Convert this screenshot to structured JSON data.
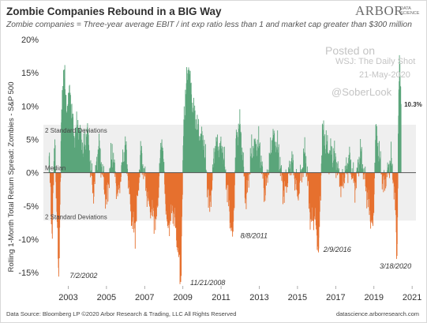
{
  "header": {
    "title": "Zombie Companies Rebound in a BIG Way",
    "subtitle": "Zombie companies = Three-year average EBIT / int exp ratio less than 1 and market cap greater than $300 million",
    "logo_main": "ARBOR",
    "logo_sub": "DATA SCIENCE"
  },
  "watermark": {
    "posted": "Posted on",
    "source": "WSJ: The Daily Shot",
    "date": "21-May-2020",
    "handle": "@SoberLook"
  },
  "footer": {
    "left": "Data Source: Bloomberg LP  ©2020 Arbor Research & Trading, LLC  All Rights Reserved",
    "right": "datascience.arborresearch.com"
  },
  "colors": {
    "positive": "#5aa57a",
    "negative": "#e6702e",
    "band": "#efefef",
    "median_line": "#555555"
  },
  "chart_data": {
    "type": "area",
    "title": "",
    "ylabel": "Rolling 1-Month Total Return Spread: Zombies - S&P 500",
    "xlabel": "",
    "xlim": [
      2001.7,
      2021.2
    ],
    "ylim": [
      -17,
      20
    ],
    "x_ticks": [
      2003,
      2005,
      2007,
      2009,
      2011,
      2013,
      2015,
      2017,
      2019,
      2021
    ],
    "y_ticks": [
      20,
      15,
      10,
      5,
      0,
      -5,
      -10,
      -15
    ],
    "y_tick_labels": [
      "20%",
      "15%",
      "10%",
      "5%",
      "0%",
      "-5%",
      "-10%",
      "-15%"
    ],
    "grid": false,
    "bands": {
      "upper_label": "2 Standard Deviations",
      "lower_label": "2 Standard Deviations",
      "median_label": "Median",
      "upper": 7.2,
      "lower": -7.2
    },
    "last_value": 10.3,
    "last_value_label": "10.3%",
    "annotations": [
      {
        "label": "7/2/2002",
        "x": 2002.5,
        "y": -15.6
      },
      {
        "label": "11/21/2008",
        "x": 2008.89,
        "y": -16.4
      },
      {
        "label": "8/8/2011",
        "x": 2011.6,
        "y": -9.6
      },
      {
        "label": "2/9/2016",
        "x": 2016.11,
        "y": -11.4
      },
      {
        "label": "3/18/2020",
        "x": 2020.21,
        "y": -12.5
      }
    ],
    "anchors": [
      [
        2002.0,
        2.5
      ],
      [
        2002.15,
        -9
      ],
      [
        2002.3,
        5
      ],
      [
        2002.5,
        -15.6
      ],
      [
        2002.65,
        8
      ],
      [
        2002.72,
        13
      ],
      [
        2002.78,
        15.5
      ],
      [
        2002.9,
        9
      ],
      [
        2003.1,
        12
      ],
      [
        2003.3,
        5
      ],
      [
        2003.5,
        7
      ],
      [
        2003.8,
        3
      ],
      [
        2004.0,
        6
      ],
      [
        2004.3,
        -3
      ],
      [
        2004.6,
        4
      ],
      [
        2005.0,
        -4
      ],
      [
        2005.3,
        3
      ],
      [
        2005.6,
        -3
      ],
      [
        2006.0,
        4
      ],
      [
        2006.3,
        -6
      ],
      [
        2006.5,
        -8.5
      ],
      [
        2006.8,
        3
      ],
      [
        2007.2,
        -4
      ],
      [
        2007.6,
        -7
      ],
      [
        2007.9,
        5
      ],
      [
        2008.2,
        -8
      ],
      [
        2008.5,
        -5
      ],
      [
        2008.75,
        -11
      ],
      [
        2008.89,
        -16.4
      ],
      [
        2009.05,
        8
      ],
      [
        2009.2,
        13
      ],
      [
        2009.3,
        15.8
      ],
      [
        2009.5,
        10
      ],
      [
        2009.8,
        6
      ],
      [
        2010.1,
        4
      ],
      [
        2010.4,
        -5
      ],
      [
        2010.7,
        4
      ],
      [
        2011.1,
        3
      ],
      [
        2011.4,
        -4
      ],
      [
        2011.6,
        -9.6
      ],
      [
        2011.8,
        5
      ],
      [
        2012.0,
        7
      ],
      [
        2012.3,
        -4
      ],
      [
        2012.6,
        3
      ],
      [
        2013.0,
        4
      ],
      [
        2013.3,
        -3
      ],
      [
        2013.7,
        5
      ],
      [
        2014.0,
        3
      ],
      [
        2014.3,
        -3
      ],
      [
        2014.7,
        2
      ],
      [
        2015.0,
        -3
      ],
      [
        2015.4,
        3
      ],
      [
        2015.7,
        -7
      ],
      [
        2015.9,
        -6
      ],
      [
        2016.11,
        -11.4
      ],
      [
        2016.3,
        6
      ],
      [
        2016.6,
        3
      ],
      [
        2017.0,
        2
      ],
      [
        2017.3,
        -2
      ],
      [
        2017.7,
        2
      ],
      [
        2018.0,
        -2
      ],
      [
        2018.3,
        3
      ],
      [
        2018.7,
        -4
      ],
      [
        2018.95,
        -8
      ],
      [
        2019.1,
        6
      ],
      [
        2019.5,
        -2
      ],
      [
        2019.9,
        2
      ],
      [
        2020.1,
        -3
      ],
      [
        2020.21,
        -12.5
      ],
      [
        2020.3,
        12
      ],
      [
        2020.36,
        16.5
      ],
      [
        2020.42,
        10.3
      ]
    ]
  }
}
